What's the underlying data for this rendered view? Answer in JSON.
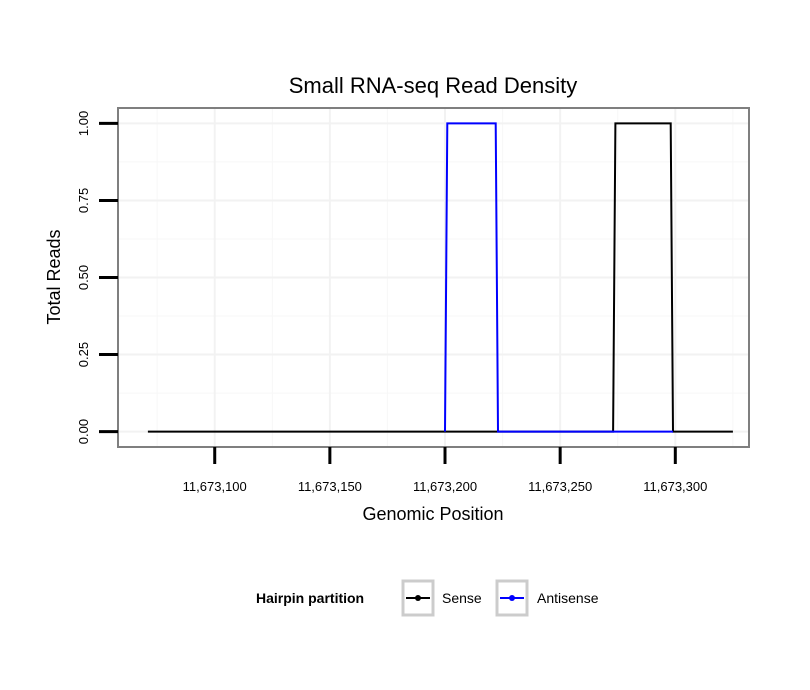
{
  "chart_data": {
    "type": "line",
    "title": "Small RNA-seq Read Density",
    "xlabel": "Genomic Position",
    "ylabel": "Total Reads",
    "xlim": [
      11673058,
      11673332
    ],
    "ylim": [
      -0.05,
      1.05
    ],
    "x_ticks": [
      11673100,
      11673150,
      11673200,
      11673250,
      11673300
    ],
    "x_tick_labels": [
      "11,673,100",
      "11,673,150",
      "11,673,200",
      "11,673,250",
      "11,673,300"
    ],
    "y_ticks": [
      0,
      0.25,
      0.5,
      0.75,
      1
    ],
    "y_tick_labels": [
      "0.00",
      "0.25",
      "0.50",
      "0.75",
      "1.00"
    ],
    "grid": true,
    "legend": {
      "title": "Hairpin partition",
      "position": "bottom",
      "entries": [
        "Sense",
        "Antisense"
      ]
    },
    "series": [
      {
        "name": "Sense",
        "color": "#000000",
        "x": [
          11673071,
          11673273,
          11673274,
          11673298,
          11673299,
          11673325
        ],
        "y": [
          0,
          0,
          1,
          1,
          0,
          0
        ]
      },
      {
        "name": "Antisense",
        "color": "#0000ff",
        "x": [
          11673200,
          11673201,
          11673222,
          11673223,
          11673273,
          11673299
        ],
        "y": [
          0,
          1,
          1,
          0,
          0,
          0
        ]
      }
    ]
  }
}
